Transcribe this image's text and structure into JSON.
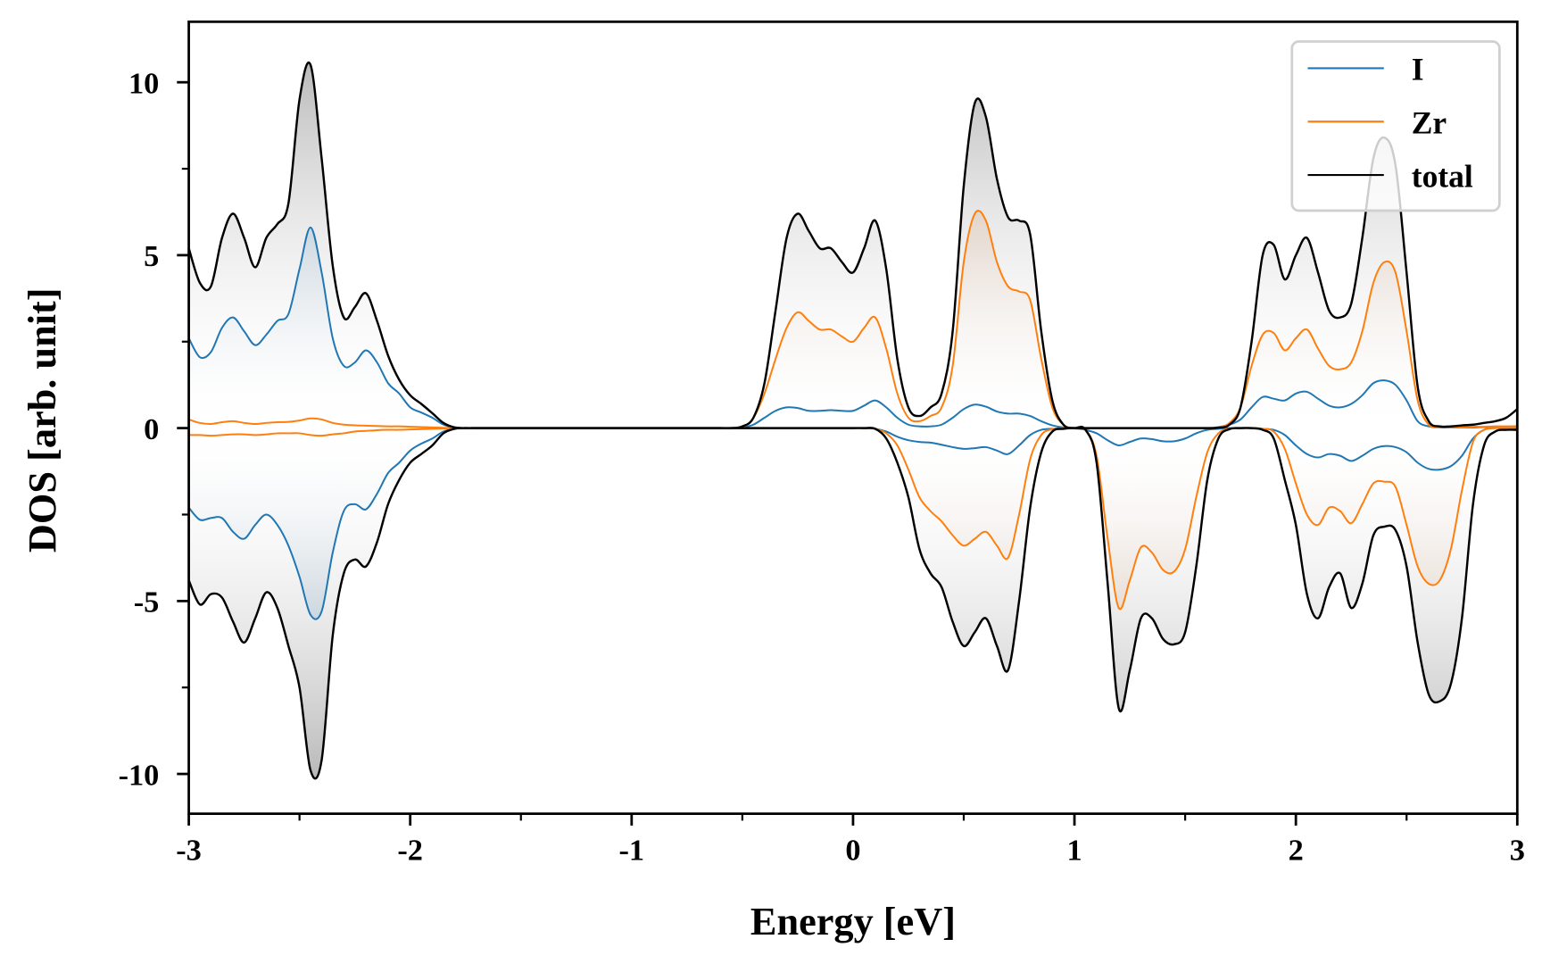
{
  "chart_data": {
    "type": "line",
    "title": "",
    "xlabel": "Energy [eV]",
    "ylabel": "DOS [arb. unit]",
    "xlim": [
      -3,
      3
    ],
    "ylim": [
      -11.15,
      11.75
    ],
    "x_start": -3,
    "x_step": 0.05,
    "xticks": [
      -3,
      -2,
      -1,
      0,
      1,
      2,
      3
    ],
    "xtick_labels": [
      "-3",
      "-2",
      "-1",
      "0",
      "1",
      "2",
      "3"
    ],
    "x_minor_ticks": [
      -2.5,
      -1.5,
      -0.5,
      0.5,
      1.5,
      2.5
    ],
    "yticks": [
      -10,
      -5,
      0,
      5,
      10
    ],
    "ytick_labels": [
      "-10",
      "-5",
      "0",
      "5",
      "10"
    ],
    "y_minor_ticks": [
      -7.5,
      -2.5,
      2.5,
      7.5
    ],
    "grid": false,
    "legend_position": "top-right",
    "series": [
      {
        "name": "I",
        "color": "#1f77b4",
        "fill_dark": "#4d7ca3",
        "up": [
          2.6,
          2.05,
          2.2,
          2.9,
          3.2,
          2.8,
          2.4,
          2.7,
          3.1,
          3.3,
          4.6,
          5.8,
          4.5,
          2.6,
          1.8,
          1.9,
          2.25,
          1.9,
          1.3,
          1.0,
          0.6,
          0.45,
          0.3,
          0.1,
          0.02,
          0,
          0,
          0,
          0,
          0,
          0,
          0,
          0,
          0,
          0,
          0,
          0,
          0,
          0,
          0,
          0,
          0,
          0,
          0,
          0,
          0,
          0,
          0,
          0,
          0,
          0.02,
          0.1,
          0.3,
          0.5,
          0.6,
          0.58,
          0.5,
          0.5,
          0.52,
          0.5,
          0.5,
          0.65,
          0.8,
          0.6,
          0.3,
          0.1,
          0.05,
          0.05,
          0.1,
          0.3,
          0.55,
          0.68,
          0.62,
          0.48,
          0.42,
          0.42,
          0.35,
          0.2,
          0.08,
          0.02,
          0,
          0,
          0,
          0,
          0,
          0,
          0,
          0,
          0,
          0,
          0,
          0,
          0,
          0.03,
          0.1,
          0.25,
          0.6,
          0.9,
          0.85,
          0.8,
          1.0,
          1.05,
          0.85,
          0.65,
          0.6,
          0.7,
          0.95,
          1.3,
          1.38,
          1.25,
          0.8,
          0.2,
          0.05,
          0.02,
          0.02,
          0.02,
          0.02,
          0.03,
          0.03,
          0.04,
          0.05
        ],
        "down": [
          -2.3,
          -2.65,
          -2.6,
          -2.6,
          -3.0,
          -3.2,
          -2.8,
          -2.5,
          -2.8,
          -3.4,
          -4.3,
          -5.4,
          -5.3,
          -3.6,
          -2.4,
          -2.2,
          -2.35,
          -1.9,
          -1.3,
          -1.0,
          -0.65,
          -0.45,
          -0.3,
          -0.1,
          -0.02,
          0,
          0,
          0,
          0,
          0,
          0,
          0,
          0,
          0,
          0,
          0,
          0,
          0,
          0,
          0,
          0,
          0,
          0,
          0,
          0,
          0,
          0,
          0,
          0,
          0,
          0,
          0,
          0,
          0,
          0,
          0,
          0,
          0,
          0,
          0,
          0,
          0,
          -0.02,
          -0.1,
          -0.25,
          -0.35,
          -0.4,
          -0.42,
          -0.48,
          -0.55,
          -0.6,
          -0.58,
          -0.55,
          -0.65,
          -0.75,
          -0.5,
          -0.2,
          -0.05,
          -0.02,
          -0.02,
          0,
          -0.05,
          -0.15,
          -0.35,
          -0.5,
          -0.4,
          -0.3,
          -0.32,
          -0.38,
          -0.38,
          -0.3,
          -0.15,
          -0.05,
          -0.02,
          0,
          0,
          0,
          -0.02,
          -0.05,
          -0.2,
          -0.5,
          -0.75,
          -0.85,
          -0.75,
          -0.8,
          -0.95,
          -0.8,
          -0.6,
          -0.52,
          -0.55,
          -0.7,
          -1.0,
          -1.18,
          -1.2,
          -1.1,
          -0.8,
          -0.3,
          -0.05,
          0,
          0,
          0
        ]
      },
      {
        "name": "Zr",
        "color": "#ff7f0e",
        "fill_dark": "#c08a62",
        "up": [
          0.25,
          0.15,
          0.12,
          0.17,
          0.2,
          0.15,
          0.12,
          0.15,
          0.17,
          0.18,
          0.22,
          0.28,
          0.25,
          0.15,
          0.1,
          0.08,
          0.07,
          0.06,
          0.05,
          0.05,
          0.04,
          0.03,
          0.02,
          0.01,
          0,
          0,
          0,
          0,
          0,
          0,
          0,
          0,
          0,
          0,
          0,
          0,
          0,
          0,
          0,
          0,
          0,
          0,
          0,
          0,
          0,
          0,
          0,
          0,
          0,
          0,
          0.03,
          0.3,
          1.0,
          2.0,
          2.9,
          3.35,
          3.1,
          2.85,
          2.85,
          2.65,
          2.5,
          2.9,
          3.2,
          2.3,
          1.0,
          0.3,
          0.2,
          0.35,
          0.6,
          1.8,
          4.8,
          6.2,
          6.0,
          4.8,
          4.1,
          3.95,
          3.7,
          2.0,
          0.6,
          0.1,
          0,
          0,
          0,
          0,
          0,
          0,
          0,
          0,
          0,
          0,
          0,
          0,
          0,
          0.02,
          0.15,
          0.6,
          1.8,
          2.7,
          2.75,
          2.25,
          2.6,
          2.85,
          2.3,
          1.8,
          1.7,
          1.9,
          2.8,
          4.2,
          4.8,
          4.5,
          2.8,
          0.8,
          0.1,
          0.03,
          0.03,
          0.03,
          0.04,
          0.04,
          0.05,
          0.05,
          0.05
        ],
        "down": [
          -0.2,
          -0.2,
          -0.22,
          -0.2,
          -0.18,
          -0.18,
          -0.2,
          -0.18,
          -0.15,
          -0.15,
          -0.15,
          -0.2,
          -0.22,
          -0.18,
          -0.15,
          -0.1,
          -0.08,
          -0.06,
          -0.05,
          -0.05,
          -0.04,
          -0.03,
          -0.02,
          -0.01,
          0,
          0,
          0,
          0,
          0,
          0,
          0,
          0,
          0,
          0,
          0,
          0,
          0,
          0,
          0,
          0,
          0,
          0,
          0,
          0,
          0,
          0,
          0,
          0,
          0,
          0,
          0,
          0,
          0,
          0,
          0,
          0,
          0,
          0,
          0,
          0,
          0,
          0,
          -0.02,
          -0.15,
          -0.5,
          -1.2,
          -2.0,
          -2.4,
          -2.7,
          -3.1,
          -3.4,
          -3.2,
          -3.0,
          -3.4,
          -3.75,
          -2.5,
          -0.9,
          -0.2,
          -0.03,
          0,
          0,
          -0.05,
          -0.8,
          -3.2,
          -5.2,
          -4.4,
          -3.45,
          -3.6,
          -4.1,
          -4.15,
          -3.5,
          -2.0,
          -0.7,
          -0.15,
          -0.02,
          0,
          0,
          -0.02,
          -0.1,
          -0.6,
          -1.6,
          -2.5,
          -2.8,
          -2.3,
          -2.4,
          -2.75,
          -2.2,
          -1.6,
          -1.55,
          -1.7,
          -2.8,
          -4.0,
          -4.5,
          -4.4,
          -3.5,
          -1.8,
          -0.4,
          -0.05,
          0,
          0,
          0
        ]
      },
      {
        "name": "total",
        "color": "#000000",
        "fill_dark": "#9a9a9a",
        "up": [
          5.2,
          4.2,
          4.1,
          5.5,
          6.2,
          5.5,
          4.65,
          5.5,
          5.9,
          6.5,
          9.5,
          10.5,
          7.8,
          4.7,
          3.2,
          3.5,
          3.9,
          3.1,
          2.1,
          1.4,
          0.95,
          0.7,
          0.43,
          0.15,
          0.02,
          0,
          0,
          0,
          0,
          0,
          0,
          0,
          0,
          0,
          0,
          0,
          0,
          0,
          0,
          0,
          0,
          0,
          0,
          0,
          0,
          0,
          0,
          0,
          0,
          0,
          0.05,
          0.3,
          1.3,
          3.4,
          5.5,
          6.2,
          5.7,
          5.2,
          5.2,
          4.8,
          4.5,
          5.2,
          6.0,
          4.6,
          2.0,
          0.6,
          0.35,
          0.6,
          1.0,
          2.8,
          7.0,
          9.4,
          9.0,
          7.2,
          6.1,
          6.0,
          5.6,
          2.8,
          0.8,
          0.1,
          0,
          0,
          0,
          0,
          0,
          0,
          0,
          0,
          0,
          0,
          0,
          0,
          0,
          0.01,
          0.1,
          0.6,
          2.5,
          5.0,
          5.3,
          4.3,
          5.0,
          5.5,
          4.5,
          3.4,
          3.2,
          3.6,
          5.5,
          7.8,
          8.4,
          7.6,
          4.5,
          1.2,
          0.2,
          0.05,
          0.05,
          0.08,
          0.1,
          0.15,
          0.2,
          0.3,
          0.55
        ],
        "down": [
          -4.4,
          -5.1,
          -4.8,
          -4.9,
          -5.6,
          -6.2,
          -5.5,
          -4.75,
          -5.2,
          -6.3,
          -7.5,
          -9.9,
          -9.6,
          -6.0,
          -4.2,
          -3.8,
          -4.0,
          -3.3,
          -2.2,
          -1.5,
          -1.0,
          -0.75,
          -0.5,
          -0.15,
          -0.02,
          0,
          0,
          0,
          0,
          0,
          0,
          0,
          0,
          0,
          0,
          0,
          0,
          0,
          0,
          0,
          0,
          0,
          0,
          0,
          0,
          0,
          0,
          0,
          0,
          0,
          0,
          0,
          0,
          0,
          0,
          0,
          0,
          0,
          0,
          0,
          0,
          0,
          -0.02,
          -0.3,
          -1.0,
          -2.0,
          -3.5,
          -4.2,
          -4.6,
          -5.6,
          -6.3,
          -5.9,
          -5.5,
          -6.3,
          -7.0,
          -5.0,
          -2.3,
          -0.7,
          -0.1,
          -0.02,
          0,
          -0.05,
          -1.0,
          -4.5,
          -8.1,
          -7.0,
          -5.5,
          -5.5,
          -6.1,
          -6.25,
          -5.9,
          -4.0,
          -1.5,
          -0.3,
          -0.03,
          0,
          0,
          -0.05,
          -0.3,
          -1.5,
          -2.8,
          -4.8,
          -5.5,
          -4.6,
          -4.2,
          -5.2,
          -4.5,
          -3.1,
          -2.85,
          -2.95,
          -4.0,
          -6.2,
          -7.7,
          -7.9,
          -7.4,
          -5.5,
          -2.2,
          -0.5,
          -0.1,
          -0.05,
          -0.05
        ]
      }
    ],
    "legend": [
      "I",
      "Zr",
      "total"
    ]
  }
}
